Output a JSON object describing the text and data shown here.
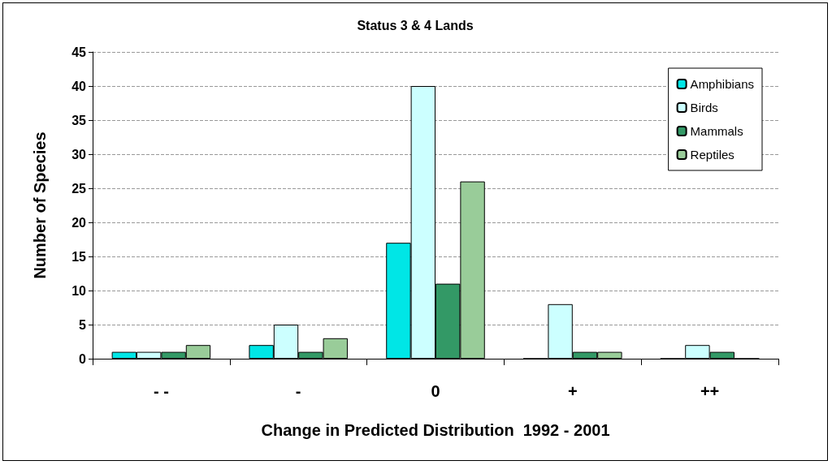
{
  "chart_data": {
    "type": "bar",
    "title": "Status 3 & 4 Lands",
    "xlabel": "Change in Predicted Distribution  1992 - 2001",
    "ylabel": "Number of Species",
    "categories": [
      "- -",
      "-",
      "0",
      "+",
      "++"
    ],
    "series": [
      {
        "name": "Amphibians",
        "color": "#00e6e6",
        "values": [
          1,
          2,
          17,
          0,
          0
        ]
      },
      {
        "name": "Birds",
        "color": "#ccffff",
        "values": [
          1,
          5,
          40,
          8,
          2
        ]
      },
      {
        "name": "Mammals",
        "color": "#339966",
        "values": [
          1,
          1,
          11,
          1,
          1
        ]
      },
      {
        "name": "Reptiles",
        "color": "#99cc99",
        "values": [
          2,
          3,
          26,
          1,
          0
        ]
      }
    ],
    "ylim": [
      0,
      45
    ],
    "yticks": [
      0,
      5,
      10,
      15,
      20,
      25,
      30,
      35,
      40,
      45
    ],
    "grid": "y",
    "legend": "top right"
  }
}
